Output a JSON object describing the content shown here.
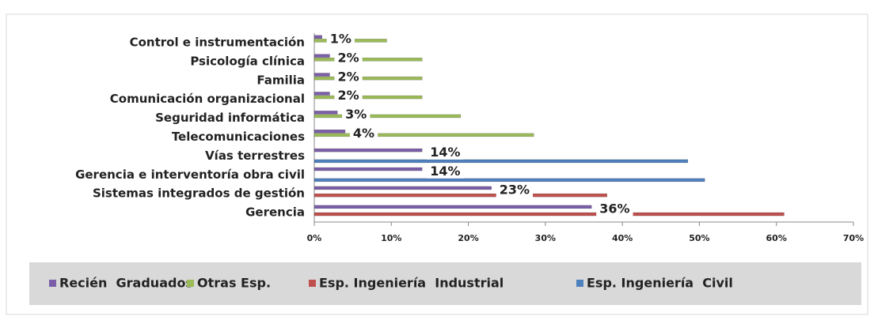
{
  "chart_data": {
    "type": "hbar",
    "categories": [
      "Control e instrumentación",
      "Psicología clínica",
      "Familia",
      "Comunicación organizacional",
      "Seguridad informática",
      "Telecomunicaciones",
      "Vías terrestres",
      "Gerencia e interventoría obra civil",
      "Sistemas integrados de gestión",
      "Gerencia"
    ],
    "series": [
      {
        "name": "Recién  Graduados",
        "color": "#7b5ea7",
        "values": [
          1,
          2,
          2,
          2,
          3,
          4,
          14,
          14,
          23,
          36
        ],
        "value_labels": [
          "1%",
          "2%",
          "2%",
          "2%",
          "3%",
          "4%",
          "14%",
          "14%",
          "23%",
          "36%"
        ]
      },
      {
        "name": "Otras Esp.",
        "color": "#9bbb59",
        "values": [
          9.4,
          14,
          14,
          14,
          19,
          28.5,
          0,
          0,
          0,
          0
        ]
      },
      {
        "name": "Esp. Ingeniería  Industrial",
        "color": "#c0504d",
        "values": [
          0,
          0,
          0,
          0,
          0,
          0,
          0,
          0,
          38,
          61
        ]
      },
      {
        "name": "Esp. Ingeniería  Civil",
        "color": "#4f81bd",
        "values": [
          0,
          0,
          0,
          0,
          0,
          0,
          48.5,
          50.7,
          0,
          0
        ]
      }
    ],
    "xlim": [
      0,
      70
    ],
    "xticks": [
      {
        "value": 0,
        "label": "0%"
      },
      {
        "value": 10,
        "label": "10%"
      },
      {
        "value": 20,
        "label": "20%"
      },
      {
        "value": 30,
        "label": "30%"
      },
      {
        "value": 40,
        "label": "40%"
      },
      {
        "value": 50,
        "label": "50%"
      },
      {
        "value": 60,
        "label": "60%"
      },
      {
        "value": 70,
        "label": "70%"
      }
    ],
    "legend": "bottom"
  }
}
